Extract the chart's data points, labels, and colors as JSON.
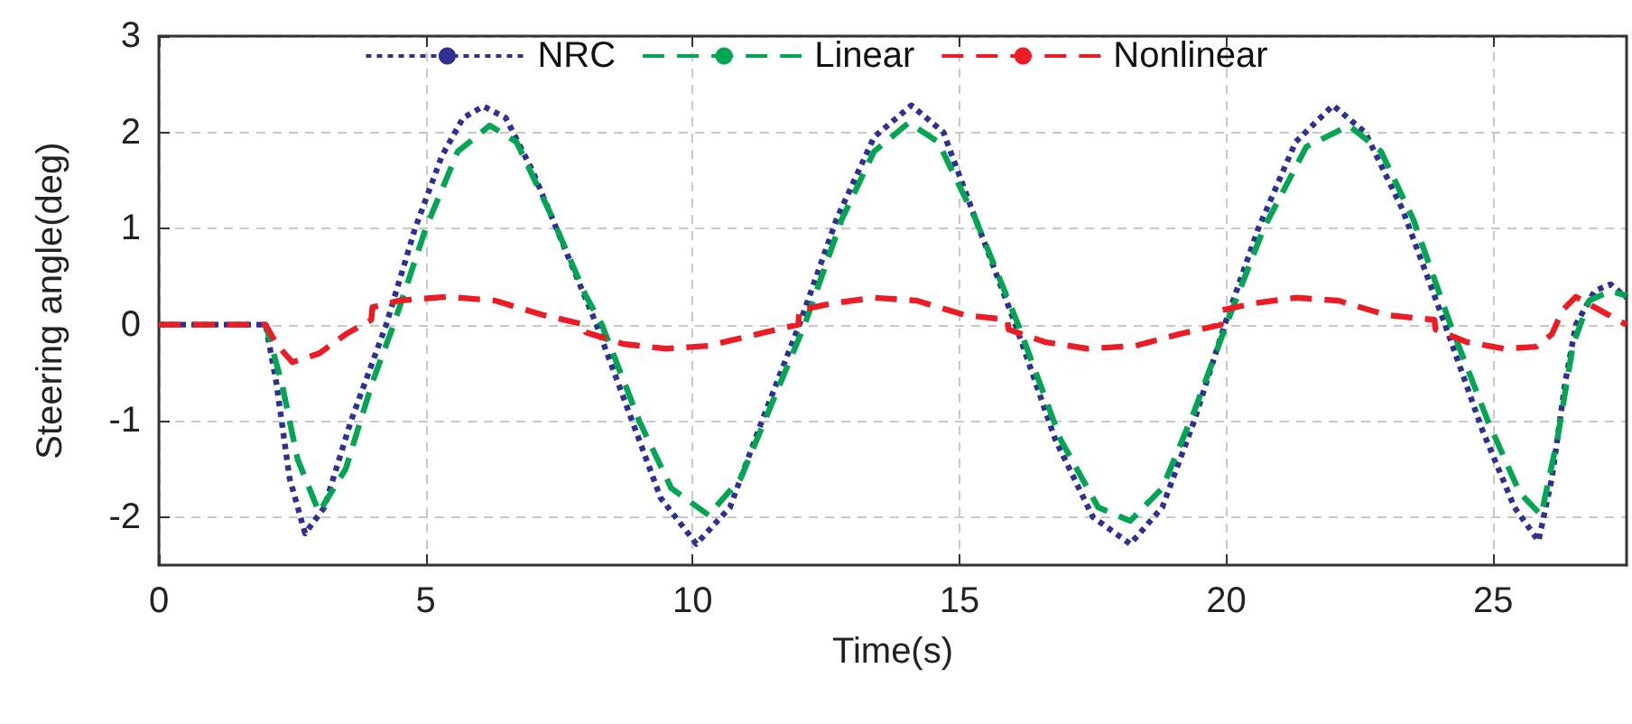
{
  "chart_data": {
    "type": "line",
    "xlabel": "Time(s)",
    "ylabel": "Steering angle(deg)",
    "xlim": [
      0,
      27.5
    ],
    "xticks": [
      0,
      5,
      10,
      15,
      20,
      25
    ],
    "ylim": [
      -2.5,
      3
    ],
    "yticks": [
      -2,
      -1,
      0,
      1,
      2,
      3
    ],
    "grid": true,
    "legend": "top",
    "marker": "none",
    "series": [
      {
        "name": "NRC",
        "color": "#2e3192",
        "line_style": "dotted",
        "x": [
          0,
          2,
          2.2,
          2.45,
          2.74,
          3.1,
          3.6,
          4.26,
          4.8,
          5.3,
          5.7,
          6.08,
          6.5,
          7.0,
          7.6,
          8.2,
          8.8,
          9.4,
          10.07,
          10.7,
          11.3,
          12.0,
          12.7,
          13.4,
          14.1,
          14.7,
          15.3,
          16.05,
          16.8,
          17.5,
          18.2,
          18.8,
          19.4,
          19.97,
          20.6,
          21.3,
          22.0,
          22.6,
          23.3,
          24.1,
          24.8,
          25.4,
          25.85,
          26.1,
          26.35,
          26.55,
          26.9,
          27.2,
          27.5
        ],
        "values": [
          0,
          0,
          -0.6,
          -1.6,
          -2.17,
          -1.9,
          -1.0,
          0,
          1.0,
          1.75,
          2.15,
          2.27,
          2.15,
          1.6,
          0.8,
          0,
          -0.9,
          -1.8,
          -2.28,
          -1.9,
          -1.0,
          0,
          1.1,
          1.95,
          2.28,
          2.0,
          1.1,
          0,
          -1.2,
          -2.0,
          -2.28,
          -1.9,
          -1.0,
          0,
          1.0,
          1.9,
          2.28,
          2.0,
          1.2,
          0,
          -1.1,
          -1.9,
          -2.25,
          -1.6,
          -0.6,
          0,
          0.35,
          0.42,
          0.28
        ]
      },
      {
        "name": "Linear",
        "color": "#00a651",
        "line_style": "dashed",
        "x": [
          0,
          2,
          2.3,
          2.6,
          3.0,
          3.5,
          4.0,
          4.4,
          5.0,
          5.6,
          6.2,
          6.7,
          7.3,
          8.0,
          8.3,
          9.0,
          9.6,
          10.3,
          10.9,
          11.5,
          12.1,
          12.8,
          13.4,
          14.05,
          14.6,
          15.3,
          16.1,
          16.9,
          17.6,
          18.2,
          18.8,
          19.4,
          20.0,
          20.7,
          21.5,
          22.3,
          22.9,
          23.5,
          24.2,
          24.9,
          25.5,
          25.9,
          26.2,
          26.5,
          26.8,
          27.2,
          27.5
        ],
        "values": [
          0,
          0,
          -0.6,
          -1.4,
          -1.95,
          -1.5,
          -0.6,
          0,
          1.0,
          1.8,
          2.07,
          1.9,
          1.2,
          0.3,
          0,
          -1.0,
          -1.7,
          -1.98,
          -1.6,
          -0.8,
          0,
          1.1,
          1.8,
          2.1,
          1.9,
          1.1,
          0,
          -1.2,
          -1.9,
          -2.04,
          -1.7,
          -0.9,
          0,
          1.0,
          1.85,
          2.07,
          1.8,
          1.1,
          0,
          -1.0,
          -1.75,
          -1.98,
          -1.2,
          -0.2,
          0.25,
          0.35,
          0.3
        ]
      },
      {
        "name": "Nonlinear",
        "color": "#ed1c24",
        "line_style": "dashed",
        "x": [
          0,
          2,
          2.2,
          2.5,
          3.0,
          3.5,
          3.98,
          4.0,
          4.5,
          5.4,
          6.3,
          7.2,
          7.98,
          8.0,
          8.7,
          9.5,
          10.3,
          11.2,
          11.98,
          12.0,
          12.6,
          13.4,
          14.2,
          15.1,
          15.9,
          15.92,
          16.6,
          17.4,
          18.3,
          19.1,
          19.9,
          19.92,
          20.5,
          21.3,
          22.1,
          23.0,
          23.9,
          23.92,
          24.5,
          25.2,
          25.8,
          26.1,
          26.3,
          26.55,
          27.0,
          27.5
        ],
        "values": [
          0,
          0,
          -0.2,
          -0.39,
          -0.3,
          -0.1,
          0.05,
          0.18,
          0.25,
          0.29,
          0.25,
          0.1,
          0,
          -0.08,
          -0.2,
          -0.25,
          -0.22,
          -0.1,
          0,
          0.15,
          0.22,
          0.28,
          0.25,
          0.1,
          0.05,
          -0.05,
          -0.18,
          -0.25,
          -0.22,
          -0.1,
          0,
          0.15,
          0.22,
          0.28,
          0.25,
          0.1,
          0.05,
          -0.05,
          -0.18,
          -0.25,
          -0.23,
          -0.1,
          0.15,
          0.29,
          0.15,
          0
        ]
      }
    ]
  }
}
